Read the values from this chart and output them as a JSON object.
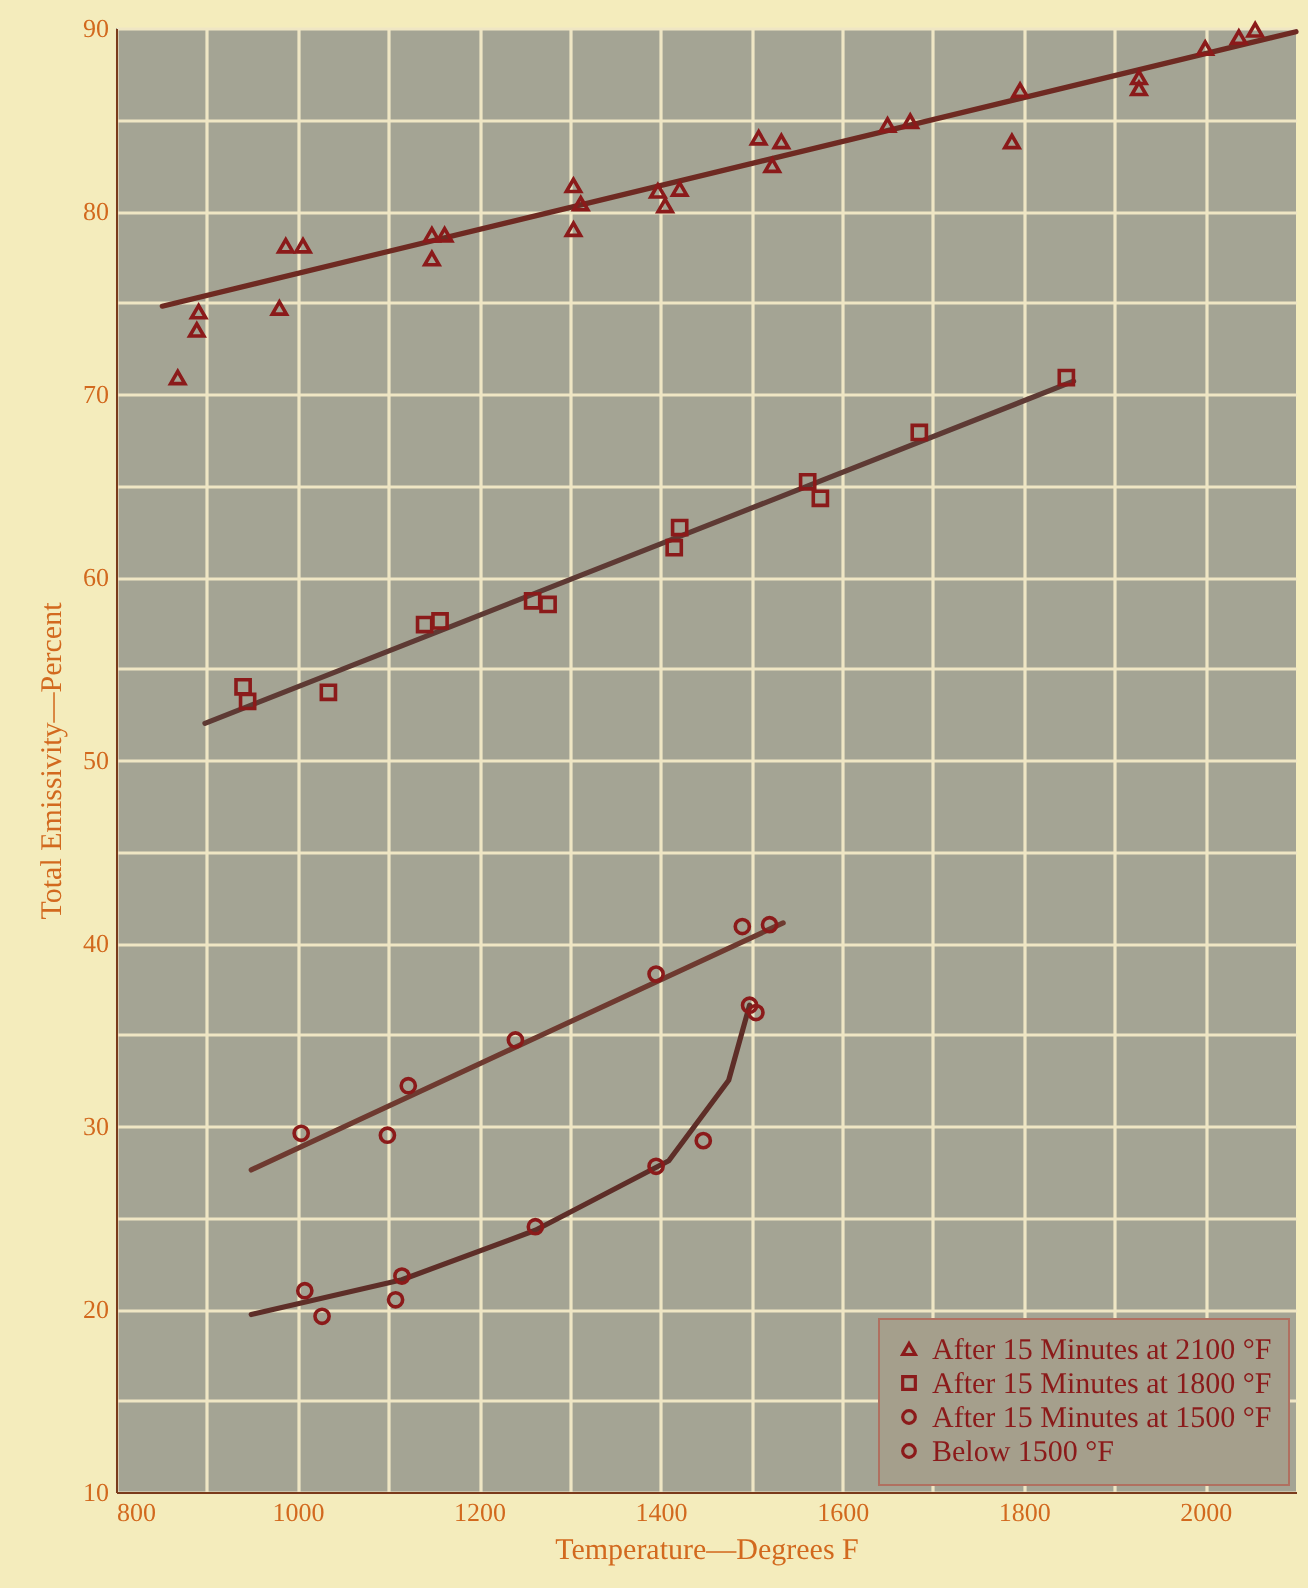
{
  "chart_data": {
    "type": "scatter",
    "xlabel": "Temperature—Degrees F",
    "ylabel": "Total Emissivity—Percent",
    "xlim": [
      800,
      2100
    ],
    "ylim": [
      10,
      90
    ],
    "xticks": [
      800,
      {
        "value": 900,
        "label": null
      },
      1000,
      {
        "value": 1100,
        "label": null
      },
      1200,
      {
        "value": 1300,
        "label": null
      },
      1400,
      {
        "value": 1500,
        "label": null
      },
      1600,
      {
        "value": 1700,
        "label": null
      },
      1800,
      {
        "value": 1900,
        "label": null
      },
      2000
    ],
    "yticks": [
      10,
      {
        "value": 15,
        "label": null
      },
      20,
      {
        "value": 25,
        "label": null
      },
      30,
      {
        "value": 35,
        "label": null
      },
      40,
      {
        "value": 45,
        "label": null
      },
      50,
      {
        "value": 55,
        "label": null
      },
      60,
      {
        "value": 65,
        "label": null
      },
      70,
      {
        "value": 75,
        "label": null
      },
      80,
      {
        "value": 85,
        "label": null
      },
      90
    ],
    "grid": true,
    "legend": "bottom right",
    "series": [
      {
        "name": "After 15 Minutes at 2100 °F",
        "marker": "triangle",
        "color": "#8b1a1a",
        "x": [
          868,
          889,
          891,
          980,
          987,
          1006,
          1148,
          1148,
          1162,
          1304,
          1312,
          1304,
          1397,
          1405,
          1421,
          1508,
          1533,
          1523,
          1650,
          1675,
          1787,
          1796,
          1927,
          1927,
          2000,
          2037,
          2055
        ],
        "values": [
          70.9,
          73.5,
          74.5,
          74.7,
          78.1,
          78.1,
          77.4,
          78.7,
          78.7,
          81.4,
          80.4,
          79.0,
          81.1,
          80.3,
          81.2,
          84.0,
          83.8,
          82.5,
          84.7,
          84.9,
          83.8,
          86.6,
          87.3,
          86.7,
          88.9,
          89.5,
          89.9
        ]
      },
      {
        "name": "After 15 Minutes at 1800 °F",
        "marker": "square",
        "color": "#8b1a1a",
        "x": [
          940,
          945,
          1034,
          1140,
          1157,
          1259,
          1276,
          1415,
          1421,
          1562,
          1576,
          1685,
          1847
        ],
        "values": [
          54.0,
          53.2,
          53.7,
          57.4,
          57.6,
          58.7,
          58.5,
          61.6,
          62.7,
          65.2,
          64.3,
          67.9,
          70.9
        ]
      },
      {
        "name": "After 15 Minutes at 1500 °F",
        "marker": "circle",
        "color": "#8b1a1a",
        "x": [
          1004,
          1099,
          1122,
          1240,
          1395,
          1490,
          1520
        ],
        "values": [
          29.6,
          29.5,
          32.2,
          34.7,
          38.3,
          40.9,
          41.0
        ]
      },
      {
        "name": "Below 1500 °F",
        "marker": "circle",
        "color": "#8b1a1a",
        "x": [
          1008,
          1027,
          1108,
          1115,
          1262,
          1395,
          1447,
          1498,
          1505
        ],
        "values": [
          21.0,
          19.6,
          20.5,
          21.8,
          24.5,
          27.8,
          29.2,
          36.6,
          36.2
        ]
      },
      {
        "type": "line",
        "color": "#6e2a22",
        "x": [
          851,
          2100
        ],
        "values": [
          74.8,
          89.8
        ]
      },
      {
        "type": "line",
        "color": "#5e3a34",
        "x": [
          898,
          1855
        ],
        "values": [
          52.0,
          70.7
        ]
      },
      {
        "type": "line",
        "color": "#6e3a30",
        "x": [
          949,
          1535
        ],
        "values": [
          27.6,
          41.1
        ]
      },
      {
        "type": "line",
        "color": "#5e2e28",
        "x": [
          949,
          1115,
          1262,
          1409,
          1475,
          1498
        ],
        "values": [
          19.7,
          21.6,
          24.3,
          28.1,
          32.5,
          36.6
        ]
      }
    ]
  }
}
